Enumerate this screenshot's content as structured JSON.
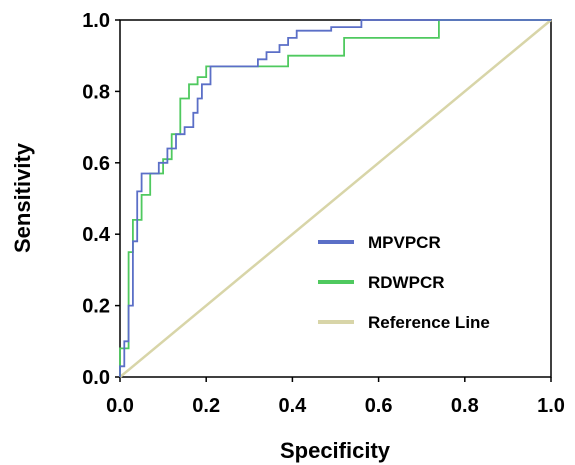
{
  "chart_data": {
    "type": "line",
    "title": "",
    "xlabel": "Specificity",
    "ylabel": "Sensitivity",
    "xlim": [
      0.0,
      1.0
    ],
    "ylim": [
      0.0,
      1.0
    ],
    "x_ticks": [
      "0.0",
      "0.2",
      "0.4",
      "0.6",
      "0.8",
      "1.0"
    ],
    "y_ticks": [
      "0.0",
      "0.2",
      "0.4",
      "0.6",
      "0.8",
      "1.0"
    ],
    "grid": false,
    "legend_position": "center-right",
    "series": [
      {
        "name": "MPVPCR",
        "color": "#5b6fc7",
        "x": [
          0.0,
          0.0,
          0.01,
          0.01,
          0.02,
          0.02,
          0.03,
          0.03,
          0.04,
          0.04,
          0.05,
          0.05,
          0.06,
          0.06,
          0.09,
          0.09,
          0.11,
          0.11,
          0.13,
          0.13,
          0.15,
          0.15,
          0.17,
          0.17,
          0.18,
          0.18,
          0.19,
          0.19,
          0.21,
          0.21,
          0.32,
          0.32,
          0.34,
          0.34,
          0.37,
          0.37,
          0.39,
          0.39,
          0.41,
          0.41,
          0.49,
          0.49,
          0.52,
          0.52,
          0.56,
          0.56,
          1.0
        ],
        "y": [
          0.0,
          0.03,
          0.03,
          0.1,
          0.1,
          0.2,
          0.2,
          0.38,
          0.38,
          0.52,
          0.52,
          0.57,
          0.57,
          0.57,
          0.57,
          0.6,
          0.6,
          0.64,
          0.64,
          0.68,
          0.68,
          0.7,
          0.7,
          0.74,
          0.74,
          0.78,
          0.78,
          0.82,
          0.82,
          0.87,
          0.87,
          0.89,
          0.89,
          0.91,
          0.91,
          0.93,
          0.93,
          0.95,
          0.95,
          0.97,
          0.97,
          0.98,
          0.98,
          0.98,
          0.98,
          1.0,
          1.0
        ]
      },
      {
        "name": "RDWPCR",
        "color": "#4fc95f",
        "x": [
          0.0,
          0.0,
          0.02,
          0.02,
          0.03,
          0.03,
          0.05,
          0.05,
          0.07,
          0.07,
          0.1,
          0.1,
          0.12,
          0.12,
          0.14,
          0.14,
          0.16,
          0.16,
          0.18,
          0.18,
          0.2,
          0.2,
          0.23,
          0.23,
          0.39,
          0.39,
          0.52,
          0.52,
          0.6,
          0.6,
          0.74,
          0.74,
          1.0
        ],
        "y": [
          0.0,
          0.08,
          0.08,
          0.35,
          0.35,
          0.44,
          0.44,
          0.51,
          0.51,
          0.57,
          0.57,
          0.61,
          0.61,
          0.68,
          0.68,
          0.78,
          0.78,
          0.82,
          0.82,
          0.84,
          0.84,
          0.87,
          0.87,
          0.87,
          0.87,
          0.9,
          0.9,
          0.95,
          0.95,
          0.95,
          0.95,
          1.0,
          1.0
        ]
      },
      {
        "name": "Reference Line",
        "color": "#d8d5a8",
        "x": [
          0.0,
          1.0
        ],
        "y": [
          0.0,
          1.0
        ]
      }
    ]
  }
}
